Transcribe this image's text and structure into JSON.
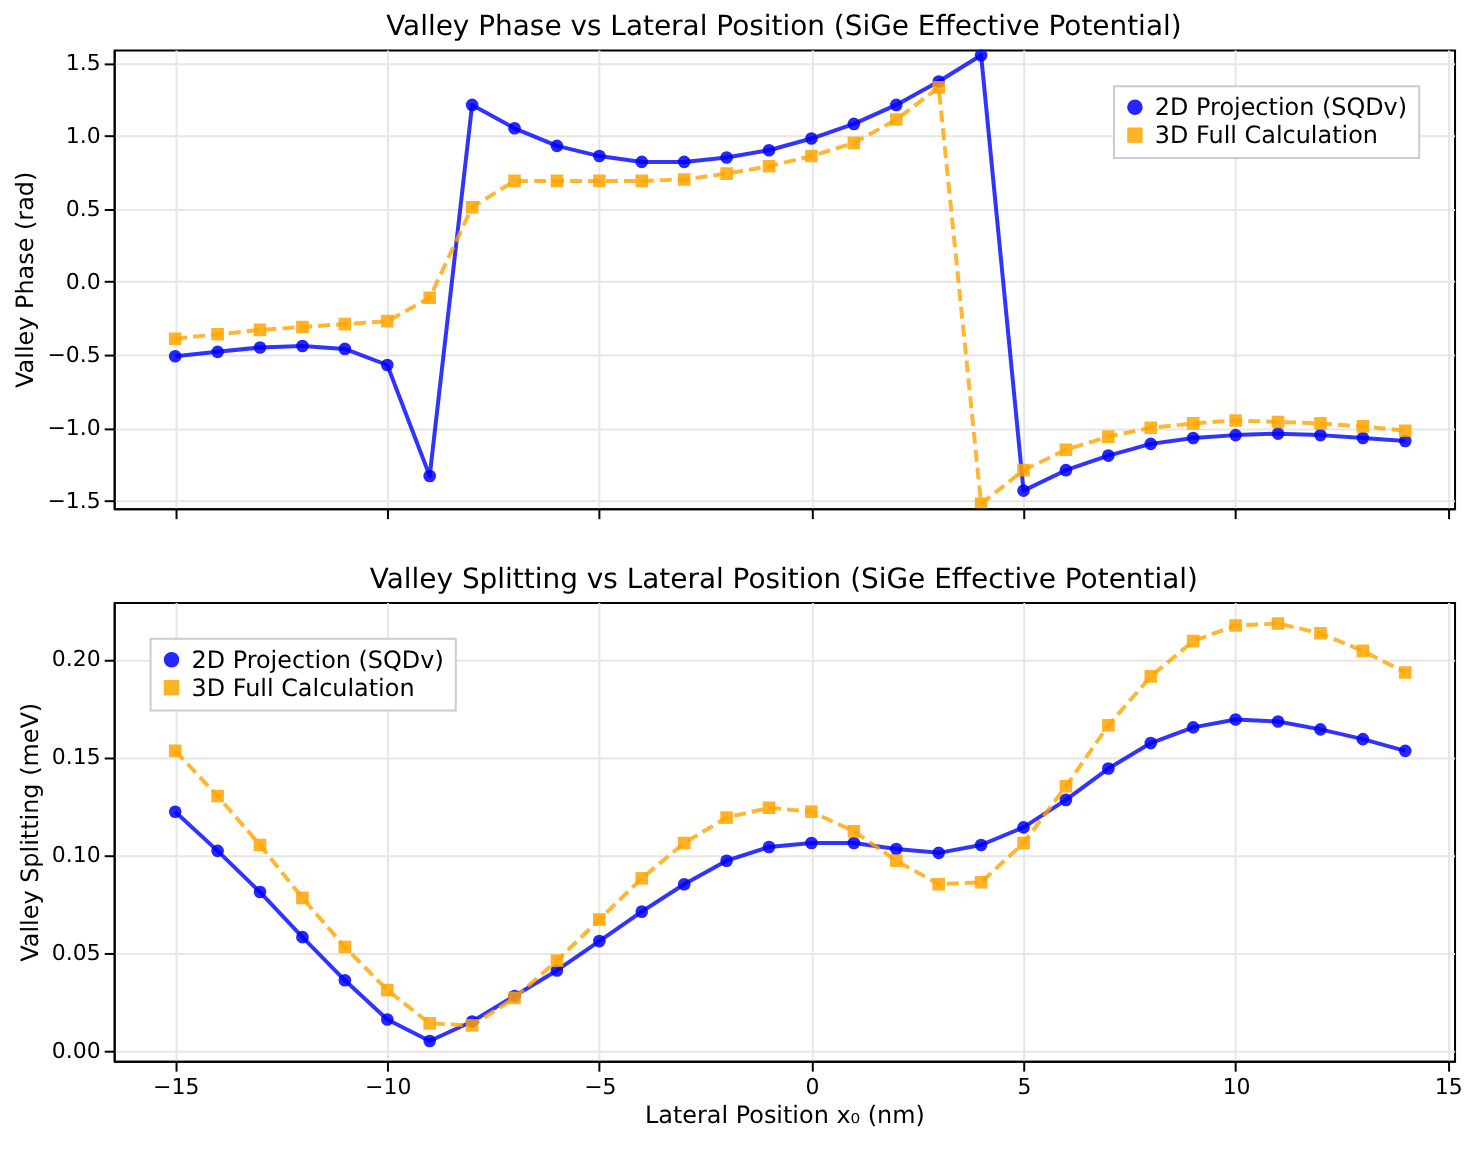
{
  "chart_data": [
    {
      "type": "line",
      "title": "Valley Phase vs Lateral Position (SiGe Effective Potential)",
      "ylabel": "Valley Phase (rad)",
      "x": [
        -15,
        -14,
        -13,
        -12,
        -11,
        -10,
        -9,
        -8,
        -7,
        -6,
        -5,
        -4,
        -3,
        -2,
        -1,
        0,
        1,
        2,
        3,
        4,
        5,
        6,
        7,
        8,
        9,
        10,
        11,
        12,
        13,
        14
      ],
      "series": [
        {
          "name": "2D Projection (SQDv)",
          "color": "#0000ff",
          "marker": "circle",
          "line_style": "solid",
          "values": [
            -0.51,
            -0.48,
            -0.45,
            -0.44,
            -0.46,
            -0.57,
            -1.33,
            1.21,
            1.05,
            0.93,
            0.86,
            0.82,
            0.82,
            0.85,
            0.9,
            0.98,
            1.08,
            1.21,
            1.37,
            1.55,
            -1.43,
            -1.29,
            -1.19,
            -1.11,
            -1.07,
            -1.05,
            -1.04,
            -1.05,
            -1.07,
            -1.09
          ]
        },
        {
          "name": "3D Full Calculation",
          "color": "#ffa500",
          "marker": "square",
          "line_style": "dashed",
          "values": [
            -0.39,
            -0.36,
            -0.33,
            -0.31,
            -0.29,
            -0.27,
            -0.11,
            0.51,
            0.69,
            0.69,
            0.69,
            0.69,
            0.7,
            0.74,
            0.79,
            0.86,
            0.95,
            1.11,
            1.33,
            -1.52,
            -1.29,
            -1.15,
            -1.06,
            -1.0,
            -0.97,
            -0.95,
            -0.96,
            -0.97,
            -0.99,
            -1.02
          ]
        }
      ],
      "xlim": [
        -16.45,
        15.15
      ],
      "xticks": [
        {
          "value": -15,
          "label": null
        },
        {
          "value": -10,
          "label": null
        },
        {
          "value": -5,
          "label": null
        },
        {
          "value": 0,
          "label": null
        },
        {
          "value": 5,
          "label": null
        },
        {
          "value": 10,
          "label": null
        },
        {
          "value": 15,
          "label": null
        }
      ],
      "ylim": [
        -1.55,
        1.59
      ],
      "yticks": [
        {
          "value": -1.5,
          "label": "−1.5"
        },
        {
          "value": -1.0,
          "label": "−1.0"
        },
        {
          "value": -0.5,
          "label": "−0.5"
        },
        {
          "value": 0,
          "label": "0.0"
        },
        {
          "value": 0.5,
          "label": "0.5"
        },
        {
          "value": 1.0,
          "label": "1.0"
        },
        {
          "value": 1.5,
          "label": "1.5"
        }
      ],
      "grid": true,
      "legend": "top right",
      "tick_labels": "y"
    },
    {
      "type": "line",
      "title": "Valley Splitting vs Lateral Position (SiGe Effective Potential)",
      "xlabel": "Lateral Position x₀ (nm)",
      "ylabel": "Valley Splitting (meV)",
      "x": [
        -15,
        -14,
        -13,
        -12,
        -11,
        -10,
        -9,
        -8,
        -7,
        -6,
        -5,
        -4,
        -3,
        -2,
        -1,
        0,
        1,
        2,
        3,
        4,
        5,
        6,
        7,
        8,
        9,
        10,
        11,
        12,
        13,
        14
      ],
      "series": [
        {
          "name": "2D Projection (SQDv)",
          "color": "#0000ff",
          "marker": "circle",
          "line_style": "solid",
          "values": [
            0.122,
            0.102,
            0.081,
            0.058,
            0.036,
            0.016,
            0.005,
            0.015,
            0.028,
            0.041,
            0.056,
            0.071,
            0.085,
            0.097,
            0.104,
            0.106,
            0.106,
            0.103,
            0.101,
            0.105,
            0.114,
            0.128,
            0.144,
            0.157,
            0.165,
            0.169,
            0.168,
            0.164,
            0.159,
            0.153
          ]
        },
        {
          "name": "3D Full Calculation",
          "color": "#ffa500",
          "marker": "square",
          "line_style": "dashed",
          "values": [
            0.153,
            0.13,
            0.105,
            0.078,
            0.053,
            0.031,
            0.014,
            0.013,
            0.027,
            0.046,
            0.067,
            0.088,
            0.106,
            0.119,
            0.124,
            0.122,
            0.112,
            0.097,
            0.085,
            0.086,
            0.106,
            0.135,
            0.166,
            0.191,
            0.209,
            0.217,
            0.218,
            0.213,
            0.204,
            0.193
          ]
        }
      ],
      "xlim": [
        -16.45,
        15.15
      ],
      "xticks": [
        {
          "value": -15,
          "label": "−15"
        },
        {
          "value": -10,
          "label": "−10"
        },
        {
          "value": -5,
          "label": "−5"
        },
        0,
        5,
        10,
        15
      ],
      "ylim": [
        -0.005,
        0.229
      ],
      "yticks": [
        {
          "value": 0,
          "label": "0.00"
        },
        {
          "value": 0.05,
          "label": "0.05"
        },
        {
          "value": 0.1,
          "label": "0.10"
        },
        {
          "value": 0.15,
          "label": "0.15"
        },
        {
          "value": 0.2,
          "label": "0.20"
        }
      ],
      "grid": true,
      "legend": "top left"
    }
  ]
}
